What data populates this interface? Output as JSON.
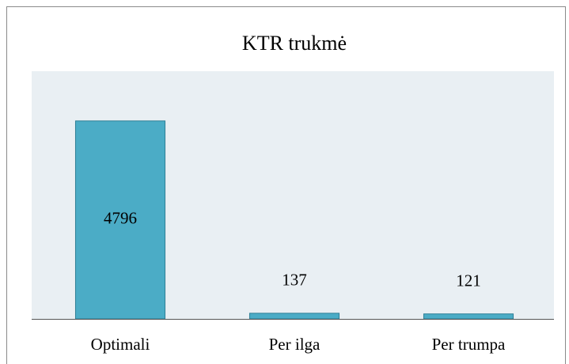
{
  "chart_data": {
    "type": "bar",
    "title": "KTR trukmė",
    "categories": [
      "Optimali",
      "Per ilga",
      "Per trumpa"
    ],
    "values": [
      4796,
      137,
      121
    ],
    "color": "#4bacc6",
    "ylim": [
      0,
      6000
    ]
  }
}
